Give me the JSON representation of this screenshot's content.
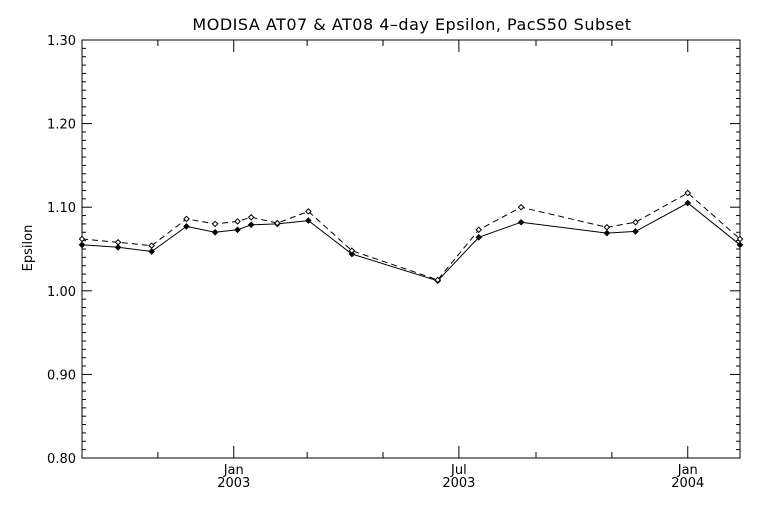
{
  "chart_data": {
    "type": "line",
    "title": "MODISA AT07 & AT08 4–day Epsilon, PacS50 Subset",
    "xlabel": "",
    "ylabel": "Epsilon",
    "xlim": [
      "2002-09-01",
      "2004-02-12"
    ],
    "ylim": [
      0.8,
      1.3
    ],
    "y_ticks": [
      {
        "value": 0.8,
        "label": "0.80"
      },
      {
        "value": 0.9,
        "label": "0.90"
      },
      {
        "value": 1.0,
        "label": "1.00"
      },
      {
        "value": 1.1,
        "label": "1.10"
      },
      {
        "value": 1.2,
        "label": "1.20"
      },
      {
        "value": 1.3,
        "label": "1.30"
      }
    ],
    "y_minor_step": 0.01,
    "x_ticks": [
      {
        "date": "2003-01-01",
        "line1": "Jan",
        "line2": "2003"
      },
      {
        "date": "2003-07-01",
        "line1": "Jul",
        "line2": "2003"
      },
      {
        "date": "2004-01-01",
        "line1": "Jan",
        "line2": "2004"
      }
    ],
    "x_minor_ticks": [
      "2002-11-01",
      "2003-03-01",
      "2003-05-01",
      "2003-09-01",
      "2003-11-01"
    ],
    "grid": false,
    "legend": "none",
    "series": [
      {
        "style": "solid",
        "points": [
          {
            "x": "2002-09-01",
            "y": 1.055
          },
          {
            "x": "2002-09-30",
            "y": 1.052
          },
          {
            "x": "2002-10-27",
            "y": 1.047
          },
          {
            "x": "2002-11-24",
            "y": 1.077
          },
          {
            "x": "2002-12-17",
            "y": 1.07
          },
          {
            "x": "2003-01-04",
            "y": 1.073
          },
          {
            "x": "2003-01-15",
            "y": 1.079
          },
          {
            "x": "2003-02-05",
            "y": 1.08
          },
          {
            "x": "2003-03-02",
            "y": 1.084
          },
          {
            "x": "2003-04-06",
            "y": 1.044
          },
          {
            "x": "2003-06-14",
            "y": 1.012
          },
          {
            "x": "2003-07-17",
            "y": 1.064
          },
          {
            "x": "2003-08-20",
            "y": 1.082
          },
          {
            "x": "2003-10-28",
            "y": 1.069
          },
          {
            "x": "2003-11-20",
            "y": 1.071
          },
          {
            "x": "2004-01-01",
            "y": 1.105
          },
          {
            "x": "2004-02-12",
            "y": 1.055
          }
        ]
      },
      {
        "style": "dashed",
        "points": [
          {
            "x": "2002-09-01",
            "y": 1.062
          },
          {
            "x": "2002-09-30",
            "y": 1.058
          },
          {
            "x": "2002-10-27",
            "y": 1.054
          },
          {
            "x": "2002-11-24",
            "y": 1.086
          },
          {
            "x": "2002-12-17",
            "y": 1.08
          },
          {
            "x": "2003-01-04",
            "y": 1.083
          },
          {
            "x": "2003-01-15",
            "y": 1.088
          },
          {
            "x": "2003-02-05",
            "y": 1.081
          },
          {
            "x": "2003-03-02",
            "y": 1.095
          },
          {
            "x": "2003-04-06",
            "y": 1.048
          },
          {
            "x": "2003-06-14",
            "y": 1.013
          },
          {
            "x": "2003-07-17",
            "y": 1.073
          },
          {
            "x": "2003-08-20",
            "y": 1.1
          },
          {
            "x": "2003-10-28",
            "y": 1.076
          },
          {
            "x": "2003-11-20",
            "y": 1.082
          },
          {
            "x": "2004-01-01",
            "y": 1.117
          },
          {
            "x": "2004-02-12",
            "y": 1.062
          }
        ]
      }
    ]
  }
}
